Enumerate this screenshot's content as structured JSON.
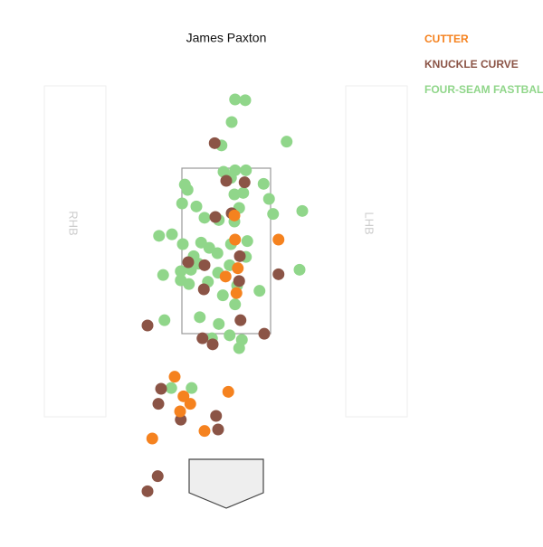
{
  "chart_data": {
    "type": "scatter",
    "title": "James Paxton",
    "side_labels": [
      "RHB",
      "LHB"
    ],
    "xlim": [
      -3,
      3
    ],
    "ylim": [
      0,
      6
    ],
    "series": [
      {
        "name": "FOUR-SEAM FASTBALL",
        "color": "#90d68a",
        "x": [
          0.13,
          0.28,
          0.08,
          -0.07,
          0.89,
          -0.04,
          0.13,
          0.29,
          0.07,
          -0.61,
          -0.57,
          0.55,
          0.12,
          0.25,
          0.63,
          -0.65,
          -0.44,
          0.19,
          -0.32,
          -0.11,
          0.12,
          0.69,
          1.12,
          -0.8,
          -0.99,
          -0.64,
          -0.37,
          -0.25,
          0.07,
          0.31,
          -0.48,
          -0.13,
          0.29,
          -0.41,
          0.05,
          -0.67,
          -0.52,
          -0.12,
          -0.93,
          -0.67,
          -0.55,
          -0.27,
          0.16,
          -0.05,
          0.49,
          0.13,
          1.08,
          -0.39,
          -0.11,
          -0.91,
          -0.21,
          0.05,
          0.23,
          0.19,
          -0.51,
          -0.81
        ],
        "values": [
          5.4,
          5.39,
          5.1,
          4.79,
          4.84,
          4.44,
          4.46,
          4.46,
          4.36,
          4.27,
          4.2,
          4.28,
          4.14,
          4.16,
          4.08,
          4.02,
          3.98,
          3.96,
          3.83,
          3.8,
          3.78,
          3.88,
          3.92,
          3.61,
          3.59,
          3.48,
          3.5,
          3.43,
          3.48,
          3.52,
          3.32,
          3.36,
          3.31,
          3.22,
          3.2,
          3.12,
          3.14,
          3.1,
          3.07,
          3.0,
          2.95,
          2.98,
          2.93,
          2.8,
          2.86,
          2.68,
          3.14,
          2.51,
          2.42,
          2.47,
          2.23,
          2.27,
          2.21,
          2.1,
          1.57,
          1.57
        ]
      },
      {
        "name": "KNUCKLE CURVE",
        "color": "#8b5446",
        "x": [
          -0.17,
          0,
          0.27,
          -0.16,
          0.08,
          -0.56,
          -0.32,
          0.2,
          0.77,
          -0.33,
          0.19,
          0.21,
          -1.16,
          -0.35,
          -0.2,
          0.56,
          -0.96,
          -1,
          -0.67,
          -0.15,
          -0.12,
          -1.01,
          -1.16
        ],
        "values": [
          4.82,
          4.32,
          4.3,
          3.84,
          3.89,
          3.24,
          3.2,
          3.32,
          3.08,
          2.88,
          2.99,
          2.47,
          2.4,
          2.23,
          2.15,
          2.29,
          1.56,
          1.36,
          1.15,
          1.2,
          1.02,
          0.4,
          0.2
        ]
      },
      {
        "name": "CUTTER",
        "color": "#f5821f",
        "x": [
          0.13,
          0.77,
          0.17,
          -0.01,
          0.15,
          -0.76,
          -0.63,
          -0.53,
          -0.68,
          0.03,
          -1.09,
          -0.32,
          0.12
        ],
        "values": [
          3.54,
          3.54,
          3.16,
          3.05,
          2.83,
          1.72,
          1.46,
          1.36,
          1.26,
          1.52,
          0.9,
          1.0,
          3.86
        ]
      }
    ]
  }
}
